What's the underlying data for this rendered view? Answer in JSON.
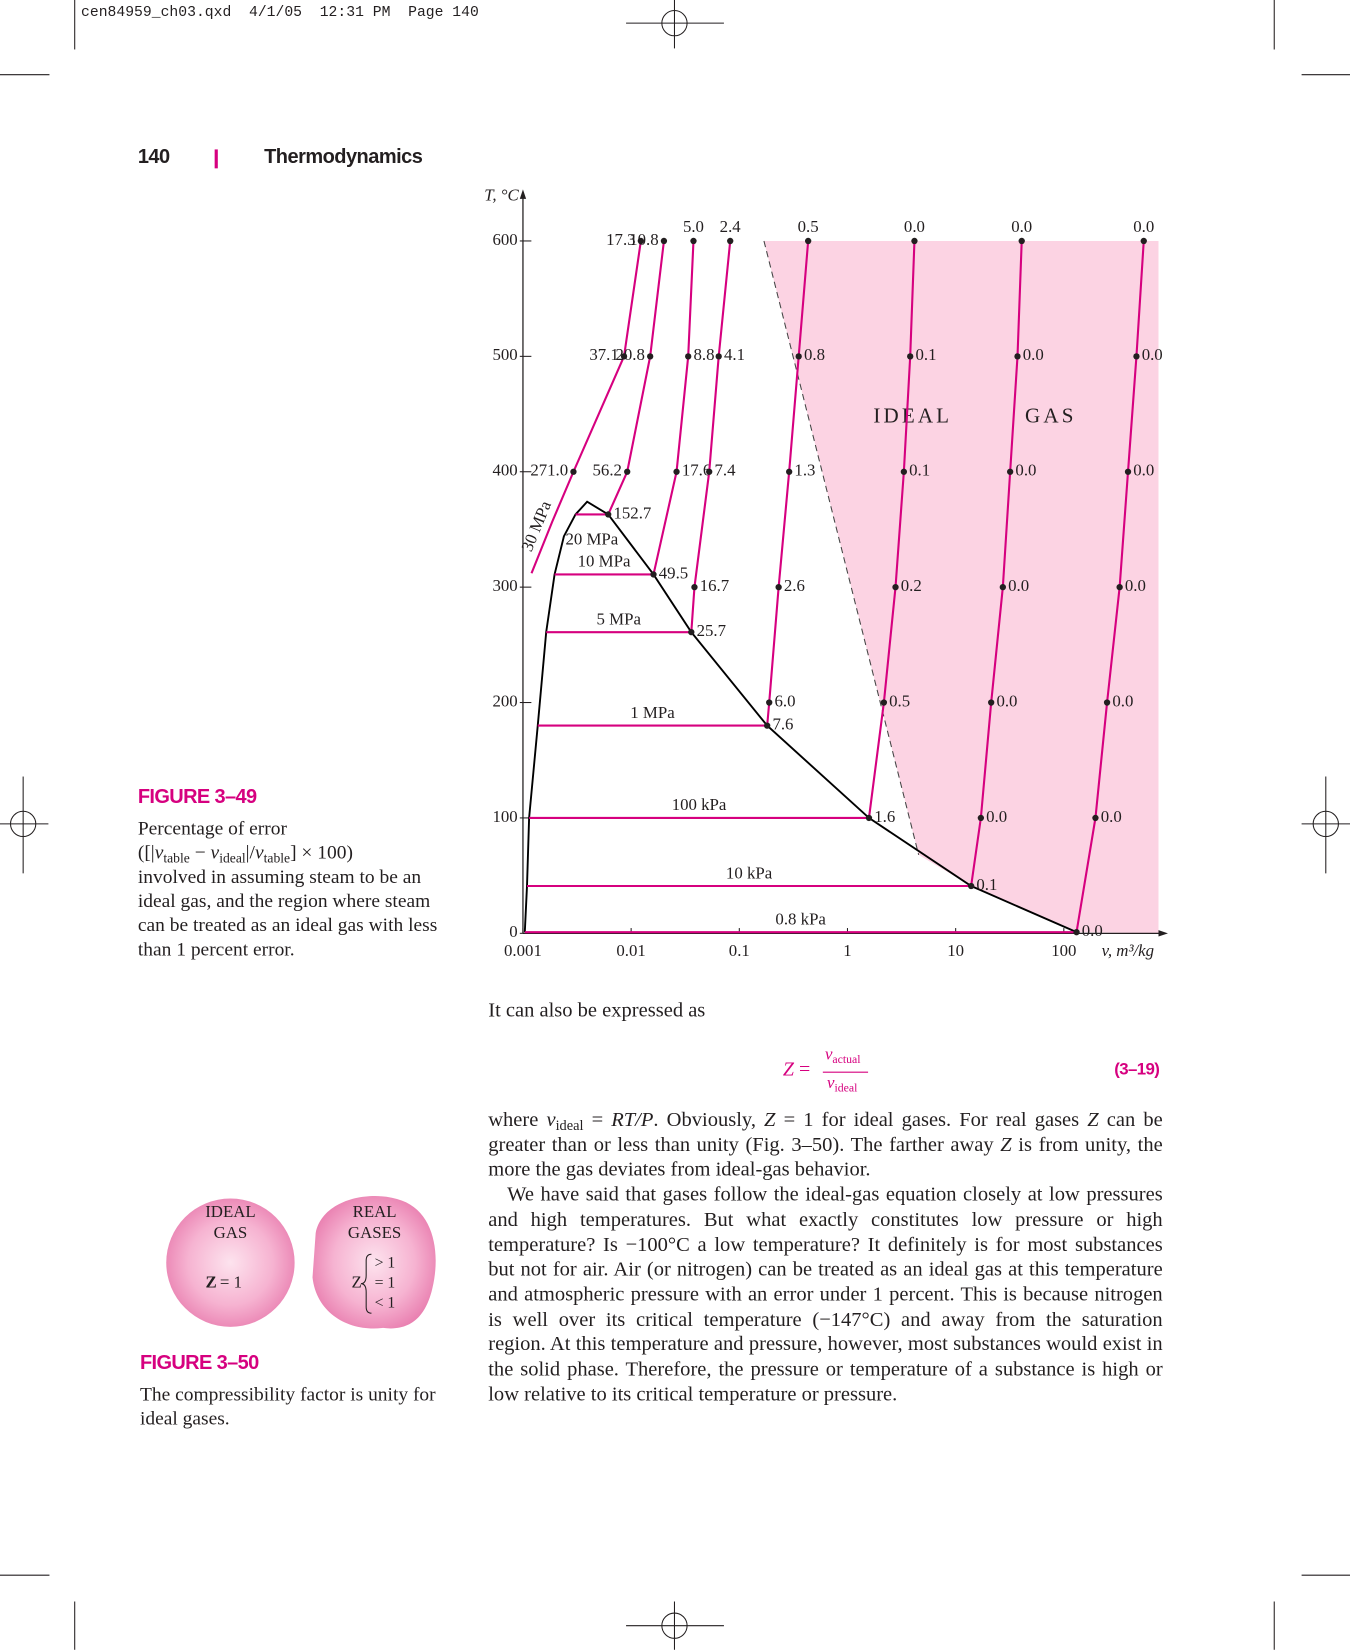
{
  "slug": "cen84959_ch03.qxd  4/1/05  12:31 PM  Page 140",
  "header": {
    "page": "140",
    "title": "Thermodynamics"
  },
  "figure_3_49": {
    "label": "FIGURE 3–49",
    "caption": [
      "Percentage of error",
      "([|",
      "v",
      "table",
      " − ",
      "v",
      "ideal",
      "|/",
      "v",
      "table",
      "] × 100)",
      "involved in assuming steam to be an ideal gas, and the region where steam can be treated as an ideal gas with less than 1 percent error."
    ]
  },
  "chart_data": {
    "type": "line",
    "xscale": "log",
    "xlabel": "v, m³/kg",
    "ylabel": "T, °C",
    "xlim": [
      0.001,
      750
    ],
    "ylim": [
      0,
      600
    ],
    "xticks": [
      0.001,
      0.01,
      0.1,
      1,
      10,
      100
    ],
    "yticks": [
      0,
      100,
      200,
      300,
      400,
      500,
      600
    ],
    "region_label": "IDEAL GAS",
    "region_color": "#fcd3e3",
    "ideal_gas_boundary": {
      "x": [
        0.169,
        4.55
      ],
      "values": [
        600,
        68
      ]
    },
    "saturation_dome": {
      "color": "#000000",
      "x": [
        0.00104,
        0.00109,
        0.00114,
        0.00137,
        0.00164,
        0.00196,
        0.00239,
        0.00306,
        0.00392,
        0.00614,
        0.0161,
        0.036,
        0.181,
        1.58,
        13.9,
        131
      ],
      "values": [
        1,
        41,
        100,
        180,
        261,
        311,
        344,
        363,
        374,
        363,
        311,
        261,
        180,
        100,
        41,
        1
      ]
    },
    "series": [
      {
        "name": "30 MPa",
        "color": "#d6007f",
        "x": [
          0.0123,
          0.0086,
          0.00293,
          0.00187,
          0.0012
        ],
        "values": [
          600,
          500,
          400,
          357,
          312
        ],
        "labels": [
          "17.3",
          "37.1",
          "271.0",
          null,
          null
        ]
      },
      {
        "name": "20 MPa",
        "color": "#d6007f",
        "x": [
          0.0201,
          0.015,
          0.0092,
          0.00614,
          0.00306
        ],
        "values": [
          600,
          500,
          400,
          363,
          363
        ],
        "labels": [
          "10.8",
          "20.8",
          "56.2",
          "152.7",
          null
        ]
      },
      {
        "name": "10 MPa",
        "color": "#d6007f",
        "x": [
          0.0377,
          0.0337,
          0.0263,
          0.0161,
          0.00196
        ],
        "values": [
          600,
          500,
          400,
          311,
          311
        ],
        "labels": [
          "5.0",
          "8.8",
          "17.6",
          "49.5",
          null
        ]
      },
      {
        "name": "5 MPa",
        "color": "#d6007f",
        "x": [
          0.0824,
          0.0645,
          0.0527,
          0.0385,
          0.036,
          0.00164
        ],
        "values": [
          600,
          500,
          400,
          300,
          261,
          261
        ],
        "labels": [
          "2.4",
          "4.1",
          "7.4",
          "16.7",
          "25.7",
          null
        ]
      },
      {
        "name": "1 MPa",
        "color": "#d6007f",
        "x": [
          0.433,
          0.354,
          0.289,
          0.231,
          0.189,
          0.181,
          0.00137
        ],
        "values": [
          600,
          500,
          400,
          300,
          200,
          180,
          180
        ],
        "labels": [
          "0.5",
          "0.8",
          "1.3",
          "2.6",
          "6.0",
          "7.6",
          null
        ]
      },
      {
        "name": "100 kPa",
        "color": "#d6007f",
        "x": [
          4.16,
          3.8,
          3.32,
          2.78,
          2.17,
          1.58,
          0.00114
        ],
        "values": [
          600,
          500,
          400,
          300,
          200,
          100,
          100
        ],
        "labels": [
          "0.0",
          "0.1",
          "0.1",
          "0.2",
          "0.5",
          "1.6",
          null
        ]
      },
      {
        "name": "10 kPa",
        "color": "#d6007f",
        "x": [
          40.8,
          37.3,
          31.9,
          27.3,
          21.3,
          17.1,
          13.9,
          0.00109
        ],
        "values": [
          600,
          500,
          400,
          300,
          200,
          100,
          41,
          41
        ],
        "labels": [
          "0.0",
          "0.0",
          "0.0",
          "0.0",
          "0.0",
          "0.0",
          "0.1",
          null
        ]
      },
      {
        "name": "0.8 kPa",
        "color": "#d6007f",
        "x": [
          548,
          469,
          392,
          328,
          251,
          196,
          131,
          0.00104
        ],
        "values": [
          600,
          500,
          400,
          300,
          200,
          100,
          1,
          1
        ],
        "labels": [
          "0.0",
          "0.0",
          "0.0",
          "0.0",
          "0.0",
          "0.0",
          "0.0",
          null
        ]
      }
    ]
  },
  "body": {
    "intro": "It can also be expressed as",
    "equation": {
      "lhs": "Z",
      "eq": "=",
      "numerator": [
        "v",
        "actual"
      ],
      "denominator": [
        "v",
        "ideal"
      ],
      "number": "(3–19)"
    },
    "paragraph_1": [
      "where ",
      "v",
      "ideal",
      " = ",
      "RT/P",
      ". Obviously, ",
      "Z",
      " = 1 for ideal gases. For real gases ",
      "Z",
      " can be greater than or less than unity (Fig. 3–50). The farther away ",
      "Z",
      " is from unity, the more the gas deviates from ideal-gas behavior."
    ],
    "paragraph_2": "We have said that gases follow the ideal-gas equation closely at low pressures and high temperatures. But what exactly constitutes low pressure or high temperature? Is −100°C a low temperature? It definitely is for most substances but not for air. Air (or nitrogen) can be treated as an ideal gas at this temperature and atmospheric pressure with an error under 1 percent. This is because nitrogen is well over its critical temperature (−147°C) and away from the saturation region. At this temperature and pressure, however, most substances would exist in the solid phase. Therefore, the pressure or temperature of a substance is high or low relative to its critical temperature or pressure."
  },
  "figure_3_50": {
    "label": "FIGURE 3–50",
    "caption": "The compressibility factor is unity for ideal gases.",
    "ideal": {
      "title": [
        "IDEAL",
        "GAS"
      ],
      "z": "Z",
      "relation": "= 1"
    },
    "real": {
      "title": [
        "REAL",
        "GASES"
      ],
      "z": "Z",
      "cases": [
        "> 1",
        "= 1",
        "< 1"
      ]
    }
  }
}
